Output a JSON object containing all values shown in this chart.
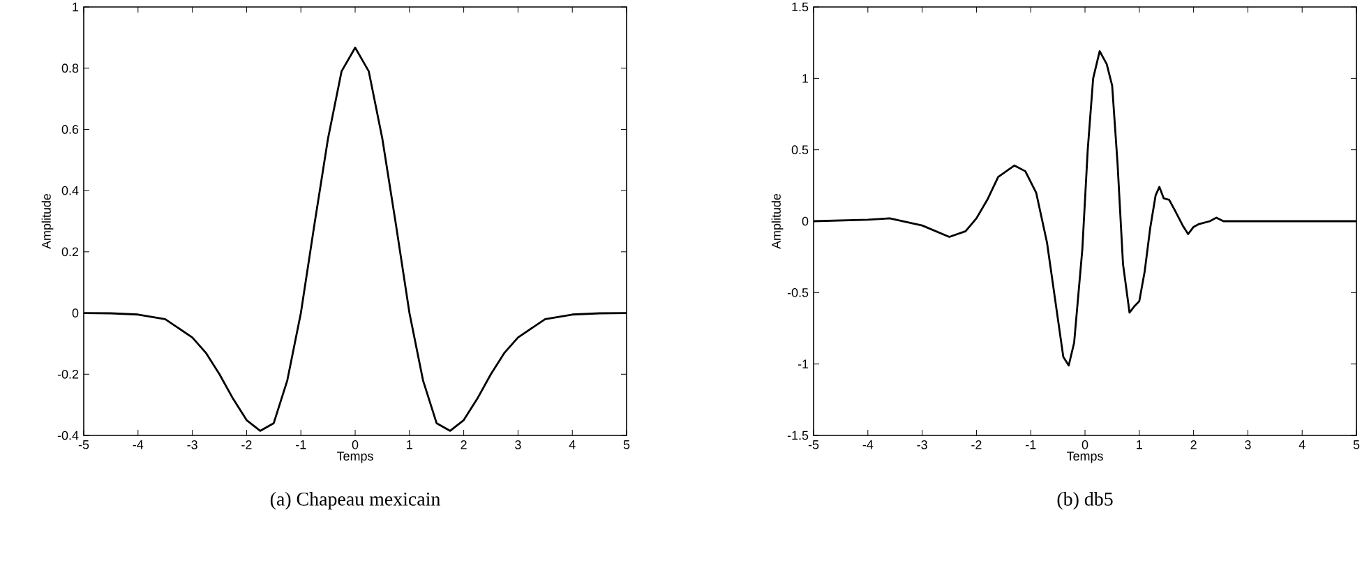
{
  "chart_data": [
    {
      "type": "line",
      "title": "(a) Chapeau mexicain",
      "xlabel": "Temps",
      "ylabel": "Amplitude",
      "color": "#000000",
      "x": [
        -5,
        -4.5,
        -4,
        -3.5,
        -3,
        -2.75,
        -2.5,
        -2.25,
        -2,
        -1.75,
        -1.5,
        -1.25,
        -1,
        -0.75,
        -0.5,
        -0.25,
        0,
        0.25,
        0.5,
        0.75,
        1,
        1.25,
        1.5,
        1.75,
        2,
        2.25,
        2.5,
        2.75,
        3,
        3.5,
        4,
        4.5,
        5
      ],
      "values": [
        0,
        -0.001,
        -0.005,
        -0.02,
        -0.08,
        -0.13,
        -0.2,
        -0.28,
        -0.35,
        -0.385,
        -0.36,
        -0.22,
        0,
        0.29,
        0.57,
        0.79,
        0.867,
        0.79,
        0.57,
        0.29,
        0,
        -0.22,
        -0.36,
        -0.385,
        -0.35,
        -0.28,
        -0.2,
        -0.13,
        -0.08,
        -0.02,
        -0.005,
        -0.001,
        0
      ],
      "xlim": [
        -5,
        5
      ],
      "ylim": [
        -0.4,
        1
      ],
      "xticks": [
        -5,
        -4,
        -3,
        -2,
        -1,
        0,
        1,
        2,
        3,
        4,
        5
      ],
      "yticks": [
        -0.4,
        -0.2,
        0,
        0.2,
        0.4,
        0.6,
        0.8,
        1
      ],
      "grid": false
    },
    {
      "type": "line",
      "title": "(b) db5",
      "xlabel": "Temps",
      "ylabel": "Amplitude",
      "color": "#000000",
      "x": [
        -5,
        -4,
        -3.6,
        -3,
        -2.5,
        -2.2,
        -2,
        -1.8,
        -1.6,
        -1.3,
        -1.1,
        -0.9,
        -0.7,
        -0.55,
        -0.4,
        -0.3,
        -0.2,
        -0.05,
        0.05,
        0.15,
        0.27,
        0.4,
        0.5,
        0.6,
        0.7,
        0.82,
        0.9,
        1.0,
        1.1,
        1.2,
        1.3,
        1.37,
        1.45,
        1.55,
        1.65,
        1.8,
        1.9,
        2.0,
        2.1,
        2.3,
        2.42,
        2.55,
        3,
        5
      ],
      "values": [
        0,
        0.01,
        0.02,
        -0.03,
        -0.11,
        -0.07,
        0.02,
        0.15,
        0.31,
        0.39,
        0.35,
        0.2,
        -0.15,
        -0.55,
        -0.95,
        -1.01,
        -0.85,
        -0.2,
        0.5,
        1.0,
        1.19,
        1.1,
        0.95,
        0.4,
        -0.3,
        -0.64,
        -0.6,
        -0.56,
        -0.35,
        -0.05,
        0.18,
        0.24,
        0.16,
        0.15,
        0.08,
        -0.03,
        -0.09,
        -0.04,
        -0.02,
        0,
        0.025,
        0,
        0,
        0
      ],
      "xlim": [
        -5,
        5
      ],
      "ylim": [
        -1.5,
        1.5
      ],
      "xticks": [
        -5,
        -4,
        -3,
        -2,
        -1,
        0,
        1,
        2,
        3,
        4,
        5
      ],
      "yticks": [
        -1.5,
        -1,
        -0.5,
        0,
        0.5,
        1,
        1.5
      ],
      "grid": false
    }
  ]
}
